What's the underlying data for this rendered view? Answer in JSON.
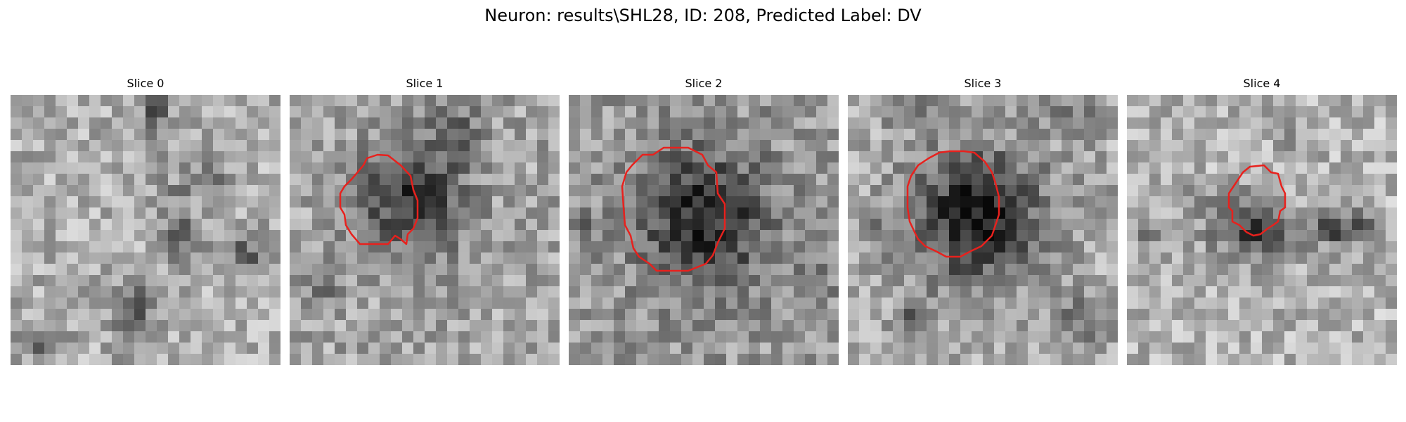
{
  "figure": {
    "title": "Neuron: results\\SHL28, ID: 208, Predicted Label: DV"
  },
  "colors": {
    "contour": "#e8211d",
    "background": "#ffffff"
  },
  "slices": [
    {
      "label": "Slice 0",
      "has_contour": false,
      "description_icon": "grayscale-microscopy-tile"
    },
    {
      "label": "Slice 1",
      "has_contour": true,
      "description_icon": "grayscale-microscopy-tile"
    },
    {
      "label": "Slice 2",
      "has_contour": true,
      "description_icon": "grayscale-microscopy-tile"
    },
    {
      "label": "Slice 3",
      "has_contour": true,
      "description_icon": "grayscale-microscopy-tile"
    },
    {
      "label": "Slice 4",
      "has_contour": true,
      "description_icon": "grayscale-microscopy-tile"
    }
  ]
}
